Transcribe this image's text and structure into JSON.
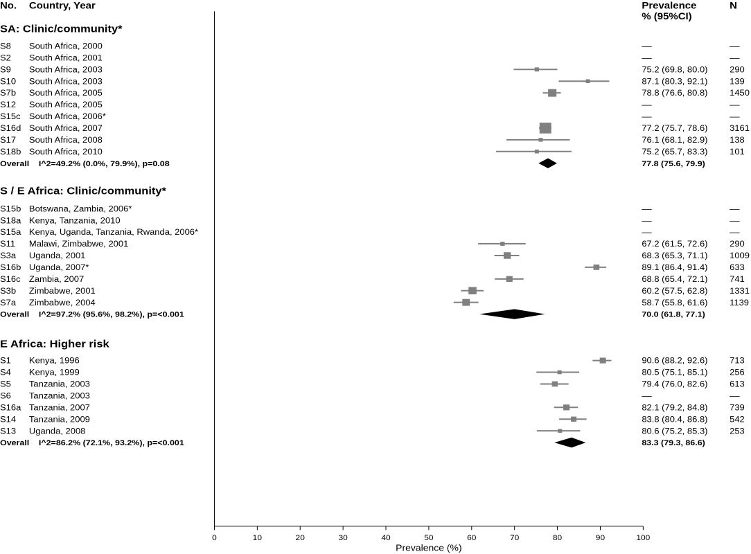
{
  "headers": {
    "no": "No.",
    "study": "Country, Year",
    "prev1": "Prevalence",
    "prev2": "% (95%CI)",
    "n": "N"
  },
  "chart_data": {
    "type": "forest",
    "xlabel": "Prevalence (%)",
    "xlim": [
      0,
      100
    ],
    "xticks": [
      0,
      10,
      20,
      30,
      40,
      50,
      60,
      70,
      80,
      90,
      100
    ],
    "marker_color": "#808080",
    "summary_color": "#000000",
    "groups": [
      {
        "title": "SA: Clinic/community*",
        "rows": [
          {
            "id": "S8",
            "label": "South Africa, 2000",
            "est": null,
            "lo": null,
            "hi": null,
            "text": "––",
            "n": "––"
          },
          {
            "id": "S2",
            "label": "South Africa, 2001",
            "est": null,
            "lo": null,
            "hi": null,
            "text": "––",
            "n": "––"
          },
          {
            "id": "S9",
            "label": "South Africa, 2003",
            "est": 75.2,
            "lo": 69.8,
            "hi": 80.0,
            "text": "75.2 (69.8, 80.0)",
            "n": "290"
          },
          {
            "id": "S10",
            "label": "South Africa, 2003",
            "est": 87.1,
            "lo": 80.3,
            "hi": 92.1,
            "text": "87.1 (80.3, 92.1)",
            "n": "139"
          },
          {
            "id": "S7b",
            "label": "South Africa, 2005",
            "est": 78.8,
            "lo": 76.6,
            "hi": 80.8,
            "text": "78.8 (76.6, 80.8)",
            "n": "1450"
          },
          {
            "id": "S12",
            "label": "South Africa, 2005",
            "est": null,
            "lo": null,
            "hi": null,
            "text": "––",
            "n": "––"
          },
          {
            "id": "S15c",
            "label": "South Africa, 2006*",
            "est": null,
            "lo": null,
            "hi": null,
            "text": "––",
            "n": "––"
          },
          {
            "id": "S16d",
            "label": "South Africa, 2007",
            "est": 77.2,
            "lo": 75.7,
            "hi": 78.6,
            "text": "77.2 (75.7, 78.6)",
            "n": "3161"
          },
          {
            "id": "S17",
            "label": "South Africa, 2008",
            "est": 76.1,
            "lo": 68.1,
            "hi": 82.9,
            "text": "76.1 (68.1, 82.9)",
            "n": "138"
          },
          {
            "id": "S18b",
            "label": "South Africa, 2010",
            "est": 75.2,
            "lo": 65.7,
            "hi": 83.3,
            "text": "75.2 (65.7, 83.3)",
            "n": "101"
          }
        ],
        "overall": {
          "label": "Overall",
          "stat": "I^2=49.2% (0.0%, 79.9%), p=0.08",
          "est": 77.8,
          "lo": 75.6,
          "hi": 79.9,
          "text": "77.8 (75.6, 79.9)"
        }
      },
      {
        "title": "S / E Africa: Clinic/community*",
        "rows": [
          {
            "id": "S15b",
            "label": "Botswana, Zambia, 2006*",
            "est": null,
            "lo": null,
            "hi": null,
            "text": "––",
            "n": "––"
          },
          {
            "id": "S18a",
            "label": "Kenya, Tanzania, 2010",
            "est": null,
            "lo": null,
            "hi": null,
            "text": "––",
            "n": "––"
          },
          {
            "id": "S15a",
            "label": "Kenya, Uganda, Tanzania, Rwanda, 2006*",
            "est": null,
            "lo": null,
            "hi": null,
            "text": "––",
            "n": "––"
          },
          {
            "id": "S11",
            "label": "Malawi, Zimbabwe, 2001",
            "est": 67.2,
            "lo": 61.5,
            "hi": 72.6,
            "text": "67.2 (61.5, 72.6)",
            "n": "290"
          },
          {
            "id": "S3a",
            "label": "Uganda, 2001",
            "est": 68.3,
            "lo": 65.3,
            "hi": 71.1,
            "text": "68.3 (65.3, 71.1)",
            "n": "1009"
          },
          {
            "id": "S16b",
            "label": "Uganda, 2007*",
            "est": 89.1,
            "lo": 86.4,
            "hi": 91.4,
            "text": "89.1 (86.4, 91.4)",
            "n": "633"
          },
          {
            "id": "S16c",
            "label": "Zambia, 2007",
            "est": 68.8,
            "lo": 65.4,
            "hi": 72.1,
            "text": "68.8 (65.4, 72.1)",
            "n": "741"
          },
          {
            "id": "S3b",
            "label": "Zimbabwe, 2001",
            "est": 60.2,
            "lo": 57.5,
            "hi": 62.8,
            "text": "60.2 (57.5, 62.8)",
            "n": "1331"
          },
          {
            "id": "S7a",
            "label": "Zimbabwe, 2004",
            "est": 58.7,
            "lo": 55.8,
            "hi": 61.6,
            "text": "58.7 (55.8, 61.6)",
            "n": "1139"
          }
        ],
        "overall": {
          "label": "Overall",
          "stat": "I^2=97.2% (95.6%, 98.2%), p=<0.001",
          "est": 70.0,
          "lo": 61.8,
          "hi": 77.1,
          "text": "70.0 (61.8, 77.1)"
        }
      },
      {
        "title": "E Africa: Higher risk",
        "rows": [
          {
            "id": "S1",
            "label": "Kenya, 1996",
            "est": 90.6,
            "lo": 88.2,
            "hi": 92.6,
            "text": "90.6 (88.2, 92.6)",
            "n": "713"
          },
          {
            "id": "S4",
            "label": "Kenya, 1999",
            "est": 80.5,
            "lo": 75.1,
            "hi": 85.1,
            "text": "80.5 (75.1, 85.1)",
            "n": "256"
          },
          {
            "id": "S5",
            "label": "Tanzania, 2003",
            "est": 79.4,
            "lo": 76.0,
            "hi": 82.6,
            "text": "79.4 (76.0, 82.6)",
            "n": "613"
          },
          {
            "id": "S6",
            "label": "Tanzania, 2003",
            "est": null,
            "lo": null,
            "hi": null,
            "text": "––",
            "n": "––"
          },
          {
            "id": "S16a",
            "label": "Tanzania, 2007",
            "est": 82.1,
            "lo": 79.2,
            "hi": 84.8,
            "text": "82.1 (79.2, 84.8)",
            "n": "739"
          },
          {
            "id": "S14",
            "label": "Tanzania, 2009",
            "est": 83.8,
            "lo": 80.4,
            "hi": 86.8,
            "text": "83.8 (80.4, 86.8)",
            "n": "542"
          },
          {
            "id": "S13",
            "label": "Uganda, 2008",
            "est": 80.6,
            "lo": 75.2,
            "hi": 85.3,
            "text": "80.6 (75.2, 85.3)",
            "n": "253"
          }
        ],
        "overall": {
          "label": "Overall",
          "stat": "I^2=86.2% (72.1%, 93.2%), p=<0.001",
          "est": 83.3,
          "lo": 79.3,
          "hi": 86.6,
          "text": "83.3 (79.3, 86.6)"
        }
      }
    ]
  }
}
